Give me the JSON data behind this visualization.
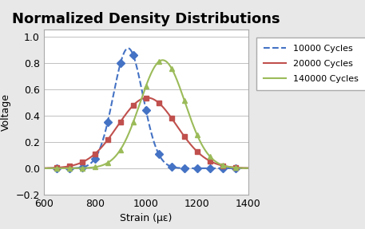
{
  "title": "Normalized Density Distributions",
  "xlabel": "Strain (με)",
  "ylabel": "Voltage",
  "xlim": [
    600,
    1400
  ],
  "ylim": [
    -0.2,
    1.05
  ],
  "xticks": [
    600,
    800,
    1000,
    1200,
    1400
  ],
  "yticks": [
    -0.2,
    0,
    0.2,
    0.4,
    0.6,
    0.8,
    1.0
  ],
  "series": [
    {
      "label": "10000 Cycles",
      "mean": 930,
      "std": 58,
      "peak": 0.91,
      "color": "#4472C4",
      "marker": "D",
      "markersize": 5,
      "linestyle": "--",
      "linewidth": 1.5
    },
    {
      "label": "20000 Cycles",
      "mean": 1005,
      "std": 115,
      "peak": 0.535,
      "color": "#C0504D",
      "marker": "s",
      "markersize": 5,
      "linestyle": "-",
      "linewidth": 1.5
    },
    {
      "label": "140000 Cycles",
      "mean": 1065,
      "std": 88,
      "peak": 0.82,
      "color": "#9BBB59",
      "marker": "^",
      "markersize": 5,
      "linestyle": "-",
      "linewidth": 1.5
    }
  ],
  "marker_x_points": [
    650,
    700,
    750,
    800,
    850,
    900,
    950,
    1000,
    1050,
    1100,
    1150,
    1200,
    1250,
    1300,
    1350
  ],
  "background_color": "#ffffff",
  "plot_bg_color": "#ffffff",
  "outer_bg_color": "#e8e8e8",
  "title_fontsize": 13,
  "axis_fontsize": 9,
  "tick_fontsize": 9,
  "legend_fontsize": 8
}
